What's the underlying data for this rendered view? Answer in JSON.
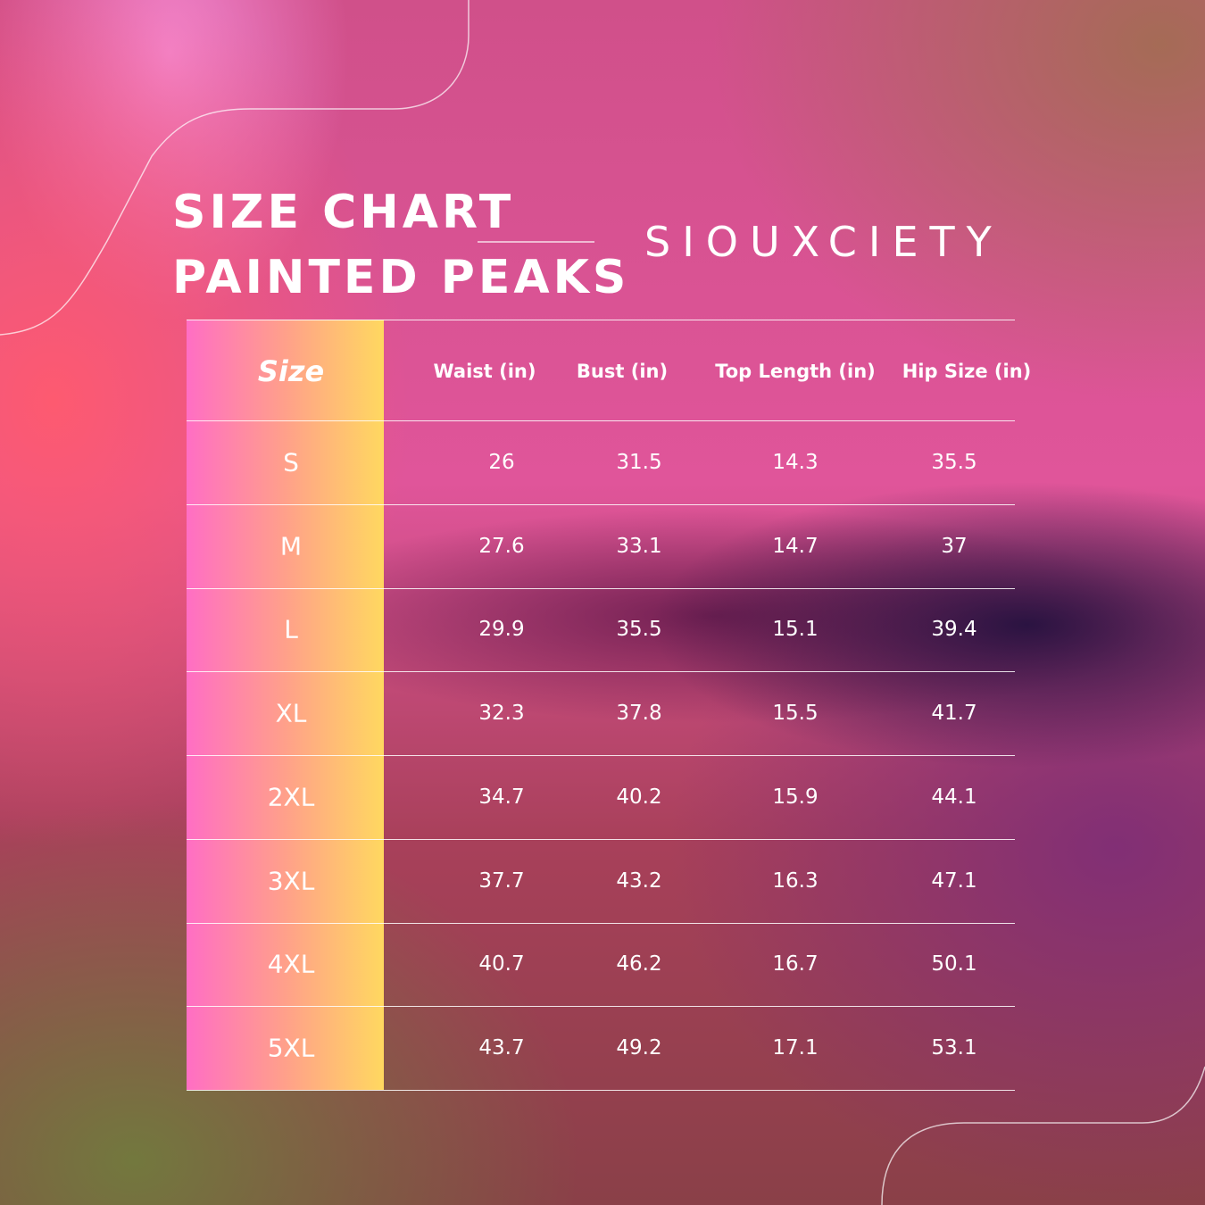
{
  "header": {
    "title_line1": "SIZE CHART",
    "title_line2": "PAINTED PEAKS",
    "brand": "SIOUXCIETY"
  },
  "table": {
    "columns": [
      "Size",
      "Waist (in)",
      "Bust (in)",
      "Top Length (in)",
      "Hip Size (in)"
    ],
    "rows": [
      [
        "S",
        "26",
        "31.5",
        "14.3",
        "35.5"
      ],
      [
        "M",
        "27.6",
        "33.1",
        "14.7",
        "37"
      ],
      [
        "L",
        "29.9",
        "35.5",
        "15.1",
        "39.4"
      ],
      [
        "XL",
        "32.3",
        "37.8",
        "15.5",
        "41.7"
      ],
      [
        "2XL",
        "34.7",
        "40.2",
        "15.9",
        "44.1"
      ],
      [
        "3XL",
        "37.7",
        "43.2",
        "16.3",
        "47.1"
      ],
      [
        "4XL",
        "40.7",
        "46.2",
        "16.7",
        "50.1"
      ],
      [
        "5XL",
        "43.7",
        "49.2",
        "17.1",
        "53.1"
      ]
    ]
  }
}
